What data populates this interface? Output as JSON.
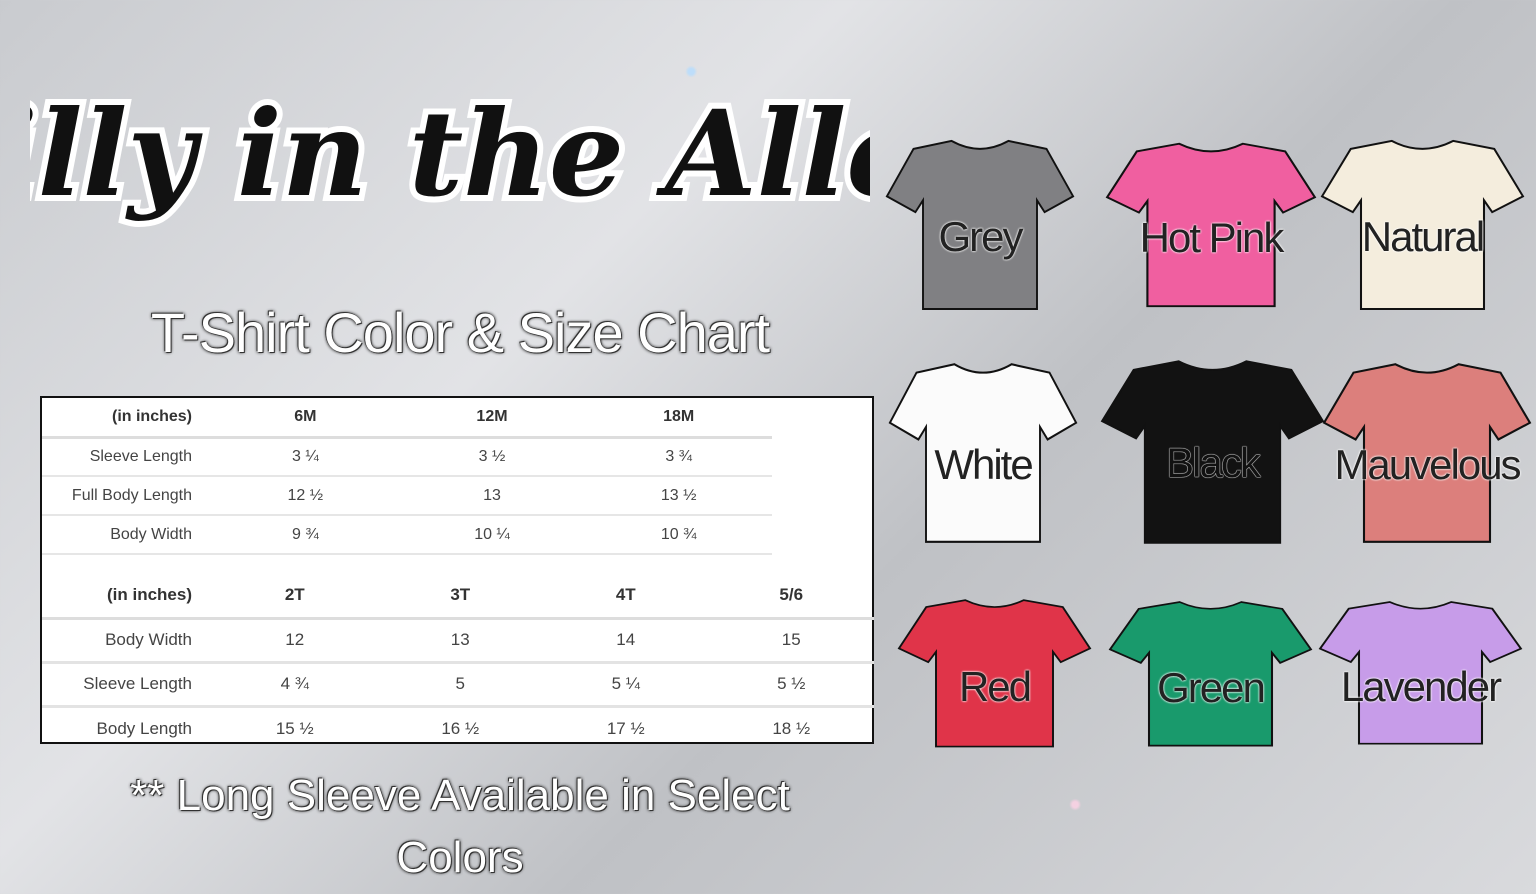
{
  "brand": {
    "logo_text": "Lilly in the Alley"
  },
  "subtitle": "T-Shirt Color & Size Chart",
  "infant_table": {
    "headers": [
      "(in inches)",
      "6M",
      "12M",
      "18M"
    ],
    "rows": [
      [
        "Sleeve Length",
        "3 ¼",
        "3 ½",
        "3 ¾"
      ],
      [
        "Full Body Length",
        "12 ½",
        "13",
        "13 ½"
      ],
      [
        "Body Width",
        "9 ¾",
        "10 ¼",
        "10 ¾"
      ]
    ]
  },
  "toddler_table": {
    "headers": [
      "(in inches)",
      "2T",
      "3T",
      "4T",
      "5/6"
    ],
    "rows": [
      [
        "Body Width",
        "12",
        "13",
        "14",
        "15"
      ],
      [
        "Sleeve Length",
        "4 ¾",
        "5",
        "5 ¼",
        "5 ½"
      ],
      [
        "Body Length",
        "15 ½",
        "16 ½",
        "17 ½",
        "18 ½"
      ]
    ]
  },
  "note": "** Long Sleeve Available in Select Colors",
  "colors": [
    {
      "name": "Grey",
      "hex": "#808083"
    },
    {
      "name": "Hot Pink",
      "hex": "#f05fa0"
    },
    {
      "name": "Natural",
      "hex": "#f4eddd"
    },
    {
      "name": "White",
      "hex": "#fbfbfb"
    },
    {
      "name": "Black",
      "hex": "#121212"
    },
    {
      "name": "Mauvelous",
      "hex": "#dc7f7c"
    },
    {
      "name": "Red",
      "hex": "#e03449"
    },
    {
      "name": "Green",
      "hex": "#199a6c"
    },
    {
      "name": "Lavender",
      "hex": "#c79ce9"
    }
  ]
}
